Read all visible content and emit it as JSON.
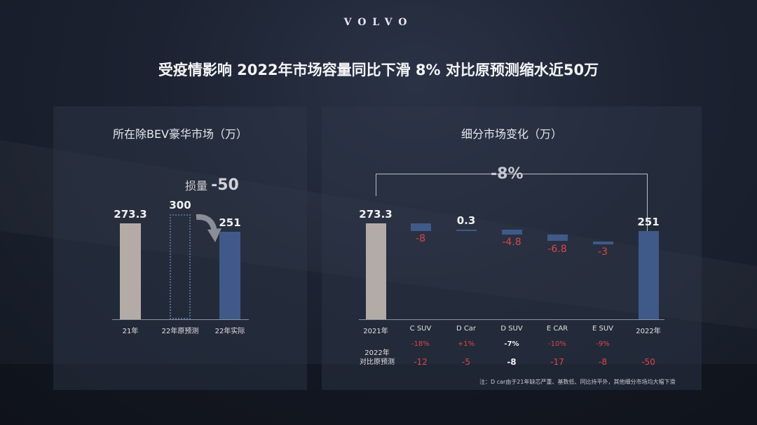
{
  "logo": "VOLVO",
  "headline": "受疫情影响  2022年市场容量同比下滑 8%  对比原预测缩水近50万",
  "left_panel": {
    "title": "所在除BEV豪华市场（万）",
    "loss_label": "损量",
    "loss_value": "-50"
  },
  "right_panel": {
    "title": "细分市场变化（万）",
    "overall_change": "-8%"
  },
  "chart_data": [
    {
      "type": "bar",
      "title": "所在除BEV豪华市场（万）",
      "categories": [
        "21年",
        "22年原预测",
        "22年实际"
      ],
      "values": [
        273.3,
        300,
        251
      ],
      "value_labels": [
        "273.3",
        "300",
        "251"
      ],
      "styles": [
        "solid-gray",
        "dotted-outline",
        "solid-blue"
      ],
      "ylim": [
        0,
        300
      ],
      "annotation": "损量 -50"
    },
    {
      "type": "bar",
      "subtype": "waterfall",
      "title": "细分市场变化（万）",
      "categories": [
        "2021年",
        "C SUV",
        "D Car",
        "D SUV",
        "E CAR",
        "E SUV",
        "2022年"
      ],
      "values": [
        273.3,
        -8,
        0.3,
        -4.8,
        -6.8,
        -3,
        251
      ],
      "value_labels": [
        "273.3",
        "-8",
        "0.3",
        "-4.8",
        "-6.8",
        "-3",
        "251"
      ],
      "ylim": [
        0,
        273.3
      ],
      "pct_change": [
        "",
        "-18%",
        "+1%",
        "-7%",
        "-10%",
        "-9%",
        ""
      ],
      "vs_forecast_label": [
        "2022年",
        "对比原预测"
      ],
      "vs_forecast": [
        "-12",
        "-5",
        "-8",
        "-17",
        "-8",
        "-50"
      ],
      "overall": "-8%"
    }
  ],
  "colors": {
    "gray_bar": "#b3aca6",
    "blue_bar": "#3f5a88",
    "negative": "#d9474a",
    "outline": "#4e6c93"
  },
  "note": "注：D car由于21年缺芯严重、基数低、同比持平外，其他细分市场均大幅下滑"
}
